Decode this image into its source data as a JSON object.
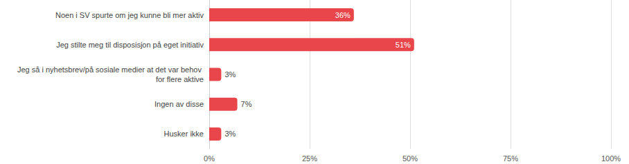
{
  "chart_data": {
    "type": "bar",
    "orientation": "horizontal",
    "categories": [
      "Noen i SV spurte om jeg kunne bli mer aktiv",
      "Jeg stilte meg til disposisjon på eget initiativ",
      "Jeg så i nyhetsbrev/på sosiale medier at det var behov for flere aktive",
      "Ingen av disse",
      "Husker ikke"
    ],
    "values": [
      36,
      51,
      3,
      7,
      3
    ],
    "value_labels": [
      "36%",
      "51%",
      "3%",
      "7%",
      "3%"
    ],
    "color": "#e8464a",
    "xlim": [
      0,
      100
    ],
    "xticks": [
      {
        "value": 0,
        "label": "0%"
      },
      {
        "value": 25,
        "label": "25%"
      },
      {
        "value": 50,
        "label": "50%"
      },
      {
        "value": 75,
        "label": "75%"
      },
      {
        "value": 100,
        "label": "100%"
      }
    ],
    "grid": true,
    "data_labels": true
  }
}
